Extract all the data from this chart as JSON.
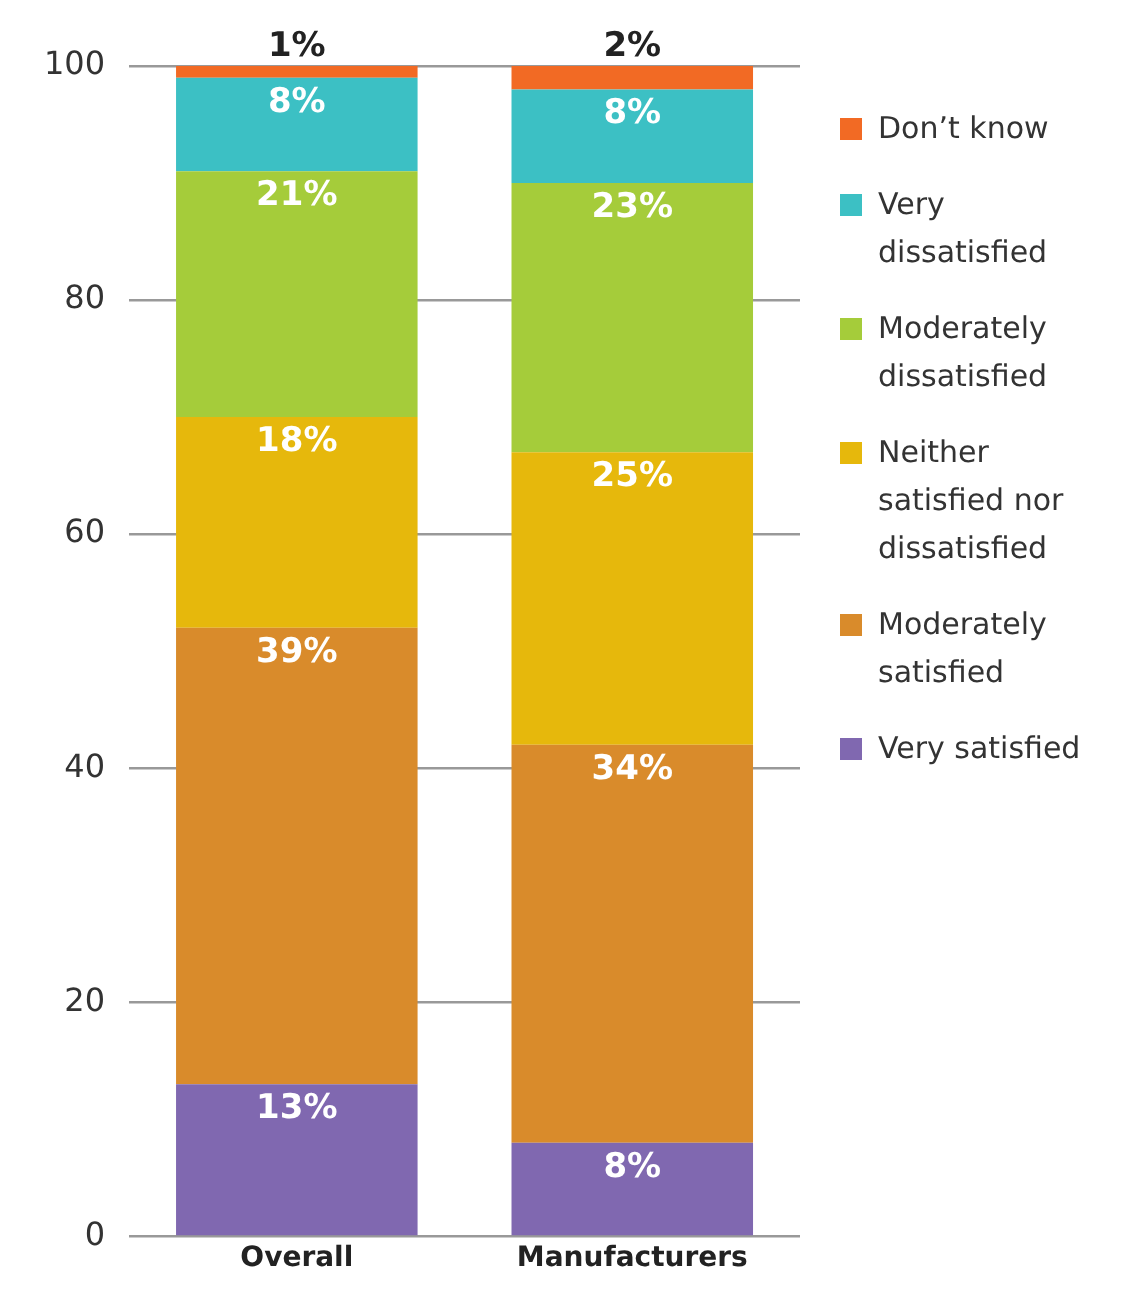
{
  "chart_data": {
    "type": "bar",
    "stacked": true,
    "categories": [
      "Overall",
      "Manufacturers"
    ],
    "series": [
      {
        "name": "Very satisfied",
        "color": "#8068b0",
        "values": [
          13,
          8
        ]
      },
      {
        "name": "Moderately satisfied",
        "color": "#d98b2b",
        "values": [
          39,
          34
        ]
      },
      {
        "name": "Neither satisfied nor dissatisfied",
        "color": "#e6b80c",
        "values": [
          18,
          25
        ]
      },
      {
        "name": "Moderately dissatisfied",
        "color": "#a5cc3a",
        "values": [
          21,
          23
        ]
      },
      {
        "name": "Very dissatisfied",
        "color": "#3cc0c4",
        "values": [
          8,
          8
        ]
      },
      {
        "name": "Don’t know",
        "color": "#f26a24",
        "values": [
          1,
          2
        ]
      }
    ],
    "value_labels": [
      [
        "13%",
        "8%"
      ],
      [
        "39%",
        "34%"
      ],
      [
        "18%",
        "25%"
      ],
      [
        "21%",
        "23%"
      ],
      [
        "8%",
        "8%"
      ],
      [
        "1%",
        "2%"
      ]
    ],
    "ylim": [
      0,
      100
    ],
    "yticks": [
      0,
      20,
      40,
      60,
      80,
      100
    ],
    "grid": "y",
    "legend": "right"
  }
}
